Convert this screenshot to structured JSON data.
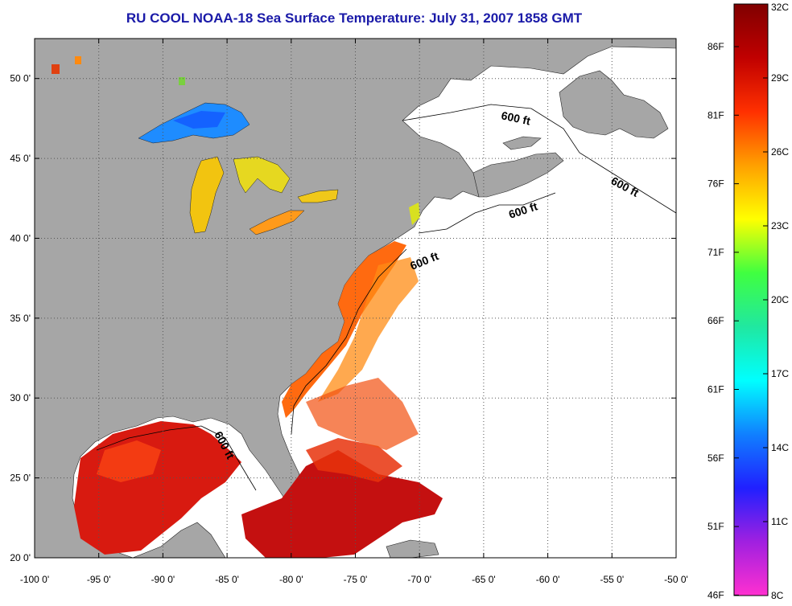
{
  "title": "RU COOL  NOAA-18  Sea Surface Temperature:  July 31, 2007 1858 GMT",
  "colors": {
    "title": "#1a1aa8",
    "land": "#a6a6a6",
    "water_nodata": "#ffffff",
    "grid": "#555555"
  },
  "map": {
    "lon_range": [
      -100,
      -50
    ],
    "lat_range": [
      20,
      52.5
    ],
    "x_ticks": [
      "-100 0'",
      "-95 0'",
      "-90 0'",
      "-85 0'",
      "-80 0'",
      "-75 0'",
      "-70 0'",
      "-65 0'",
      "-60 0'",
      "-55 0'",
      "-50 0'"
    ],
    "y_ticks": [
      "50 0'",
      "45 0'",
      "40 0'",
      "35 0'",
      "30 0'",
      "25 0'",
      "20 0'"
    ],
    "grid": "dotted",
    "contour_labels": [
      "600 ft",
      "600 ft",
      "600 ft",
      "600 ft",
      "600 ft"
    ]
  },
  "colorbar": {
    "left_labels": [
      "86F",
      "81F",
      "76F",
      "71F",
      "66F",
      "61F",
      "56F",
      "51F",
      "46F"
    ],
    "right_labels": [
      "32C",
      "29C",
      "26C",
      "23C",
      "20C",
      "17C",
      "14C",
      "11C",
      "8C"
    ],
    "gradient": [
      "#ff30d0",
      "#a020e0",
      "#2020ff",
      "#1080ff",
      "#00ffff",
      "#20e8a0",
      "#40ff40",
      "#ffff00",
      "#ffa000",
      "#ff3000",
      "#c00000",
      "#800000"
    ]
  }
}
